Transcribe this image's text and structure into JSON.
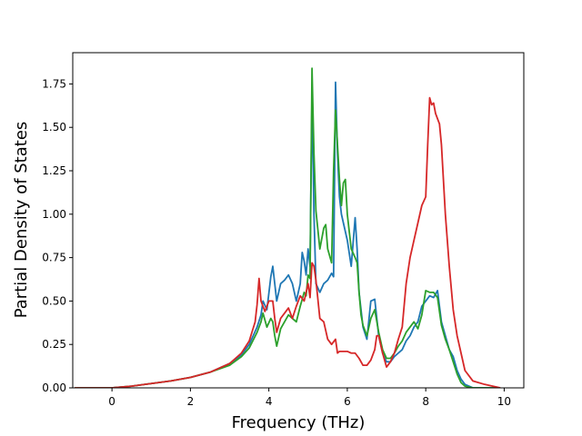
{
  "chart_data": {
    "type": "line",
    "title": "",
    "xlabel": "Frequency (THz)",
    "ylabel": "Partial Density of States",
    "xlim": [
      -1.0,
      10.5
    ],
    "ylim": [
      0.0,
      1.93
    ],
    "xticks": [
      0,
      2,
      4,
      6,
      8,
      10
    ],
    "yticks": [
      0.0,
      0.25,
      0.5,
      0.75,
      1.0,
      1.25,
      1.5,
      1.75
    ],
    "xtick_labels": [
      "0",
      "2",
      "4",
      "6",
      "8",
      "10"
    ],
    "ytick_labels": [
      "0.00",
      "0.25",
      "0.50",
      "0.75",
      "1.00",
      "1.25",
      "1.50",
      "1.75"
    ],
    "grid": false,
    "legend": "none",
    "series": [
      {
        "color": "#1f77b4",
        "x": [
          -0.95,
          -0.5,
          0,
          0.5,
          1,
          1.5,
          2,
          2.5,
          3,
          3.3,
          3.5,
          3.7,
          3.8,
          3.85,
          3.95,
          4.05,
          4.1,
          4.2,
          4.3,
          4.4,
          4.5,
          4.6,
          4.7,
          4.8,
          4.85,
          4.9,
          4.95,
          5.0,
          5.05,
          5.1,
          5.15,
          5.2,
          5.3,
          5.4,
          5.5,
          5.6,
          5.65,
          5.7,
          5.75,
          5.8,
          5.85,
          5.9,
          6.0,
          6.1,
          6.2,
          6.25,
          6.3,
          6.35,
          6.4,
          6.5,
          6.6,
          6.7,
          6.8,
          6.9,
          7.0,
          7.1,
          7.2,
          7.3,
          7.4,
          7.5,
          7.6,
          7.7,
          7.8,
          7.9,
          8.0,
          8.1,
          8.2,
          8.3,
          8.4,
          8.5,
          8.6,
          8.7,
          8.8,
          8.9,
          9.0,
          9.2,
          9.5,
          9.9
        ],
        "y": [
          0,
          0,
          0,
          0.01,
          0.025,
          0.04,
          0.06,
          0.09,
          0.14,
          0.19,
          0.25,
          0.35,
          0.42,
          0.5,
          0.45,
          0.64,
          0.7,
          0.5,
          0.6,
          0.62,
          0.65,
          0.6,
          0.5,
          0.6,
          0.78,
          0.73,
          0.65,
          0.8,
          0.7,
          1.7,
          1.0,
          0.6,
          0.55,
          0.6,
          0.62,
          0.66,
          0.64,
          1.76,
          1.35,
          1.1,
          1.0,
          0.95,
          0.85,
          0.7,
          0.98,
          0.8,
          0.55,
          0.45,
          0.35,
          0.28,
          0.5,
          0.51,
          0.3,
          0.2,
          0.15,
          0.15,
          0.18,
          0.2,
          0.22,
          0.27,
          0.3,
          0.35,
          0.38,
          0.47,
          0.5,
          0.53,
          0.52,
          0.56,
          0.38,
          0.3,
          0.22,
          0.18,
          0.1,
          0.05,
          0.02,
          0,
          0,
          0
        ]
      },
      {
        "color": "#2ca02c",
        "x": [
          -0.95,
          -0.5,
          0,
          0.5,
          1,
          1.5,
          2,
          2.5,
          3,
          3.3,
          3.5,
          3.7,
          3.8,
          3.85,
          3.95,
          4.05,
          4.1,
          4.15,
          4.2,
          4.3,
          4.4,
          4.5,
          4.6,
          4.7,
          4.8,
          4.9,
          4.95,
          5.0,
          5.05,
          5.1,
          5.15,
          5.2,
          5.3,
          5.4,
          5.45,
          5.5,
          5.6,
          5.65,
          5.7,
          5.75,
          5.8,
          5.85,
          5.9,
          5.95,
          6.0,
          6.1,
          6.2,
          6.25,
          6.3,
          6.35,
          6.4,
          6.5,
          6.6,
          6.7,
          6.8,
          6.9,
          7.0,
          7.1,
          7.2,
          7.3,
          7.4,
          7.5,
          7.6,
          7.7,
          7.8,
          7.9,
          8.0,
          8.1,
          8.2,
          8.3,
          8.4,
          8.5,
          8.6,
          8.7,
          8.8,
          8.9,
          9.0,
          9.2,
          9.5,
          9.9
        ],
        "y": [
          0,
          0,
          0,
          0.01,
          0.025,
          0.04,
          0.06,
          0.09,
          0.13,
          0.18,
          0.23,
          0.32,
          0.38,
          0.43,
          0.35,
          0.4,
          0.38,
          0.3,
          0.24,
          0.34,
          0.38,
          0.42,
          0.4,
          0.38,
          0.47,
          0.55,
          0.53,
          0.65,
          0.63,
          1.84,
          1.35,
          1.02,
          0.8,
          0.92,
          0.94,
          0.8,
          0.72,
          1.25,
          1.6,
          1.4,
          1.2,
          1.05,
          1.18,
          1.2,
          1.0,
          0.8,
          0.75,
          0.72,
          0.55,
          0.42,
          0.36,
          0.3,
          0.4,
          0.45,
          0.32,
          0.22,
          0.17,
          0.17,
          0.2,
          0.24,
          0.27,
          0.32,
          0.35,
          0.38,
          0.34,
          0.42,
          0.56,
          0.55,
          0.55,
          0.52,
          0.36,
          0.28,
          0.22,
          0.15,
          0.08,
          0.03,
          0.01,
          0,
          0,
          0
        ]
      },
      {
        "color": "#d62728",
        "x": [
          -0.95,
          -0.5,
          0,
          0.5,
          1,
          1.5,
          2,
          2.5,
          3,
          3.3,
          3.5,
          3.65,
          3.7,
          3.75,
          3.8,
          3.9,
          4.0,
          4.1,
          4.15,
          4.2,
          4.3,
          4.4,
          4.5,
          4.6,
          4.7,
          4.8,
          4.9,
          5.0,
          5.05,
          5.1,
          5.15,
          5.2,
          5.3,
          5.4,
          5.5,
          5.6,
          5.7,
          5.75,
          5.8,
          5.9,
          6.0,
          6.1,
          6.2,
          6.3,
          6.4,
          6.5,
          6.6,
          6.7,
          6.75,
          6.8,
          6.9,
          7.0,
          7.1,
          7.2,
          7.3,
          7.4,
          7.5,
          7.6,
          7.65,
          7.7,
          7.8,
          7.9,
          8.0,
          8.05,
          8.1,
          8.15,
          8.2,
          8.25,
          8.3,
          8.35,
          8.4,
          8.5,
          8.6,
          8.7,
          8.8,
          8.9,
          9.0,
          9.2,
          9.5,
          9.9
        ],
        "y": [
          0,
          0,
          0,
          0.01,
          0.025,
          0.04,
          0.06,
          0.09,
          0.14,
          0.2,
          0.27,
          0.38,
          0.48,
          0.63,
          0.5,
          0.44,
          0.5,
          0.5,
          0.4,
          0.32,
          0.4,
          0.43,
          0.46,
          0.4,
          0.47,
          0.53,
          0.5,
          0.6,
          0.52,
          0.72,
          0.7,
          0.62,
          0.4,
          0.38,
          0.28,
          0.25,
          0.28,
          0.2,
          0.21,
          0.21,
          0.21,
          0.2,
          0.2,
          0.17,
          0.13,
          0.13,
          0.16,
          0.22,
          0.3,
          0.3,
          0.2,
          0.12,
          0.15,
          0.2,
          0.28,
          0.35,
          0.6,
          0.75,
          0.8,
          0.85,
          0.95,
          1.05,
          1.1,
          1.4,
          1.67,
          1.63,
          1.64,
          1.58,
          1.55,
          1.52,
          1.4,
          1.0,
          0.7,
          0.45,
          0.3,
          0.2,
          0.1,
          0.04,
          0.02,
          0
        ]
      }
    ]
  }
}
